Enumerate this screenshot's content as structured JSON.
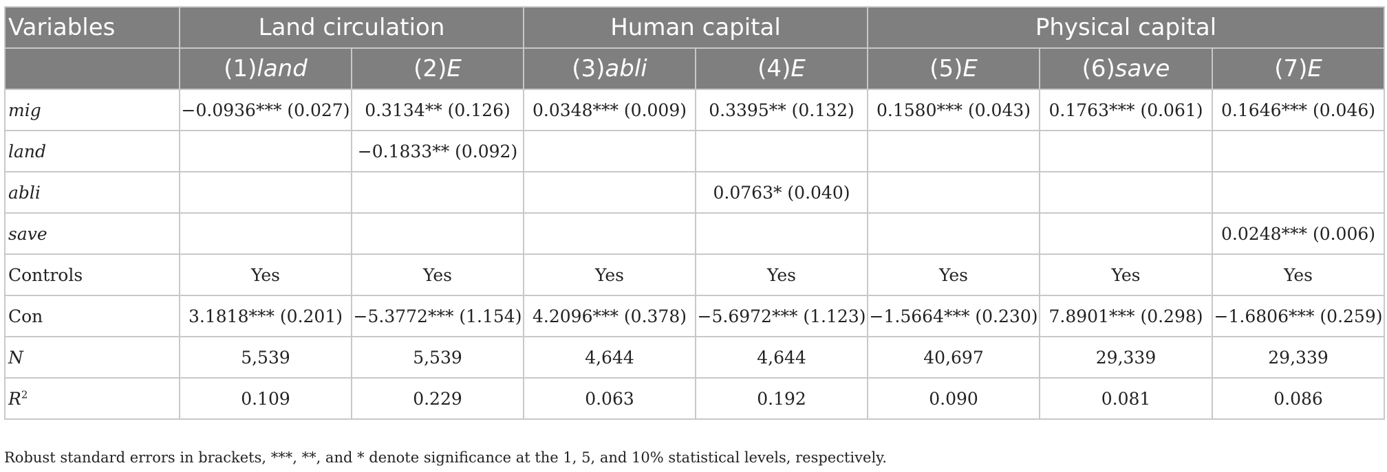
{
  "header": {
    "variables_label": "Variables",
    "groups": [
      "Land circulation",
      "Human capital",
      "Physical capital"
    ],
    "columns": [
      {
        "num": "(1)",
        "name": "land"
      },
      {
        "num": "(2)",
        "name": "E"
      },
      {
        "num": "(3)",
        "name": "abli"
      },
      {
        "num": "(4)",
        "name": "E"
      },
      {
        "num": "(5)",
        "name": "E"
      },
      {
        "num": "(6)",
        "name": "save"
      },
      {
        "num": "(7)",
        "name": "E"
      }
    ]
  },
  "rows": [
    {
      "label": "mig",
      "cells": [
        "−0.0936*** (0.027)",
        "0.3134** (0.126)",
        "0.0348*** (0.009)",
        "0.3395** (0.132)",
        "0.1580*** (0.043)",
        "0.1763*** (0.061)",
        "0.1646*** (0.046)"
      ]
    },
    {
      "label": "land",
      "cells": [
        "",
        "−0.1833** (0.092)",
        "",
        "",
        "",
        "",
        ""
      ]
    },
    {
      "label": "abli",
      "cells": [
        "",
        "",
        "",
        "0.0763* (0.040)",
        "",
        "",
        ""
      ]
    },
    {
      "label": "save",
      "cells": [
        "",
        "",
        "",
        "",
        "",
        "",
        "0.0248*** (0.006)"
      ]
    },
    {
      "label": "Controls",
      "cells": [
        "Yes",
        "Yes",
        "Yes",
        "Yes",
        "Yes",
        "Yes",
        "Yes"
      ]
    },
    {
      "label": "Con",
      "cells": [
        "3.1818*** (0.201)",
        "−5.3772*** (1.154)",
        "4.2096*** (0.378)",
        "−5.6972*** (1.123)",
        "−1.5664*** (0.230)",
        "7.8901*** (0.298)",
        "−1.6806*** (0.259)"
      ]
    },
    {
      "label": "N",
      "cells": [
        "5,539",
        "5,539",
        "4,644",
        "4,644",
        "40,697",
        "29,339",
        "29,339"
      ]
    },
    {
      "label": "R",
      "label_sup": "2",
      "cells": [
        "0.109",
        "0.229",
        "0.063",
        "0.192",
        "0.090",
        "0.081",
        "0.086"
      ]
    }
  ],
  "note": "Robust standard errors in brackets, ***, **, and * denote significance at the 1, 5, and 10% statistical levels, respectively."
}
